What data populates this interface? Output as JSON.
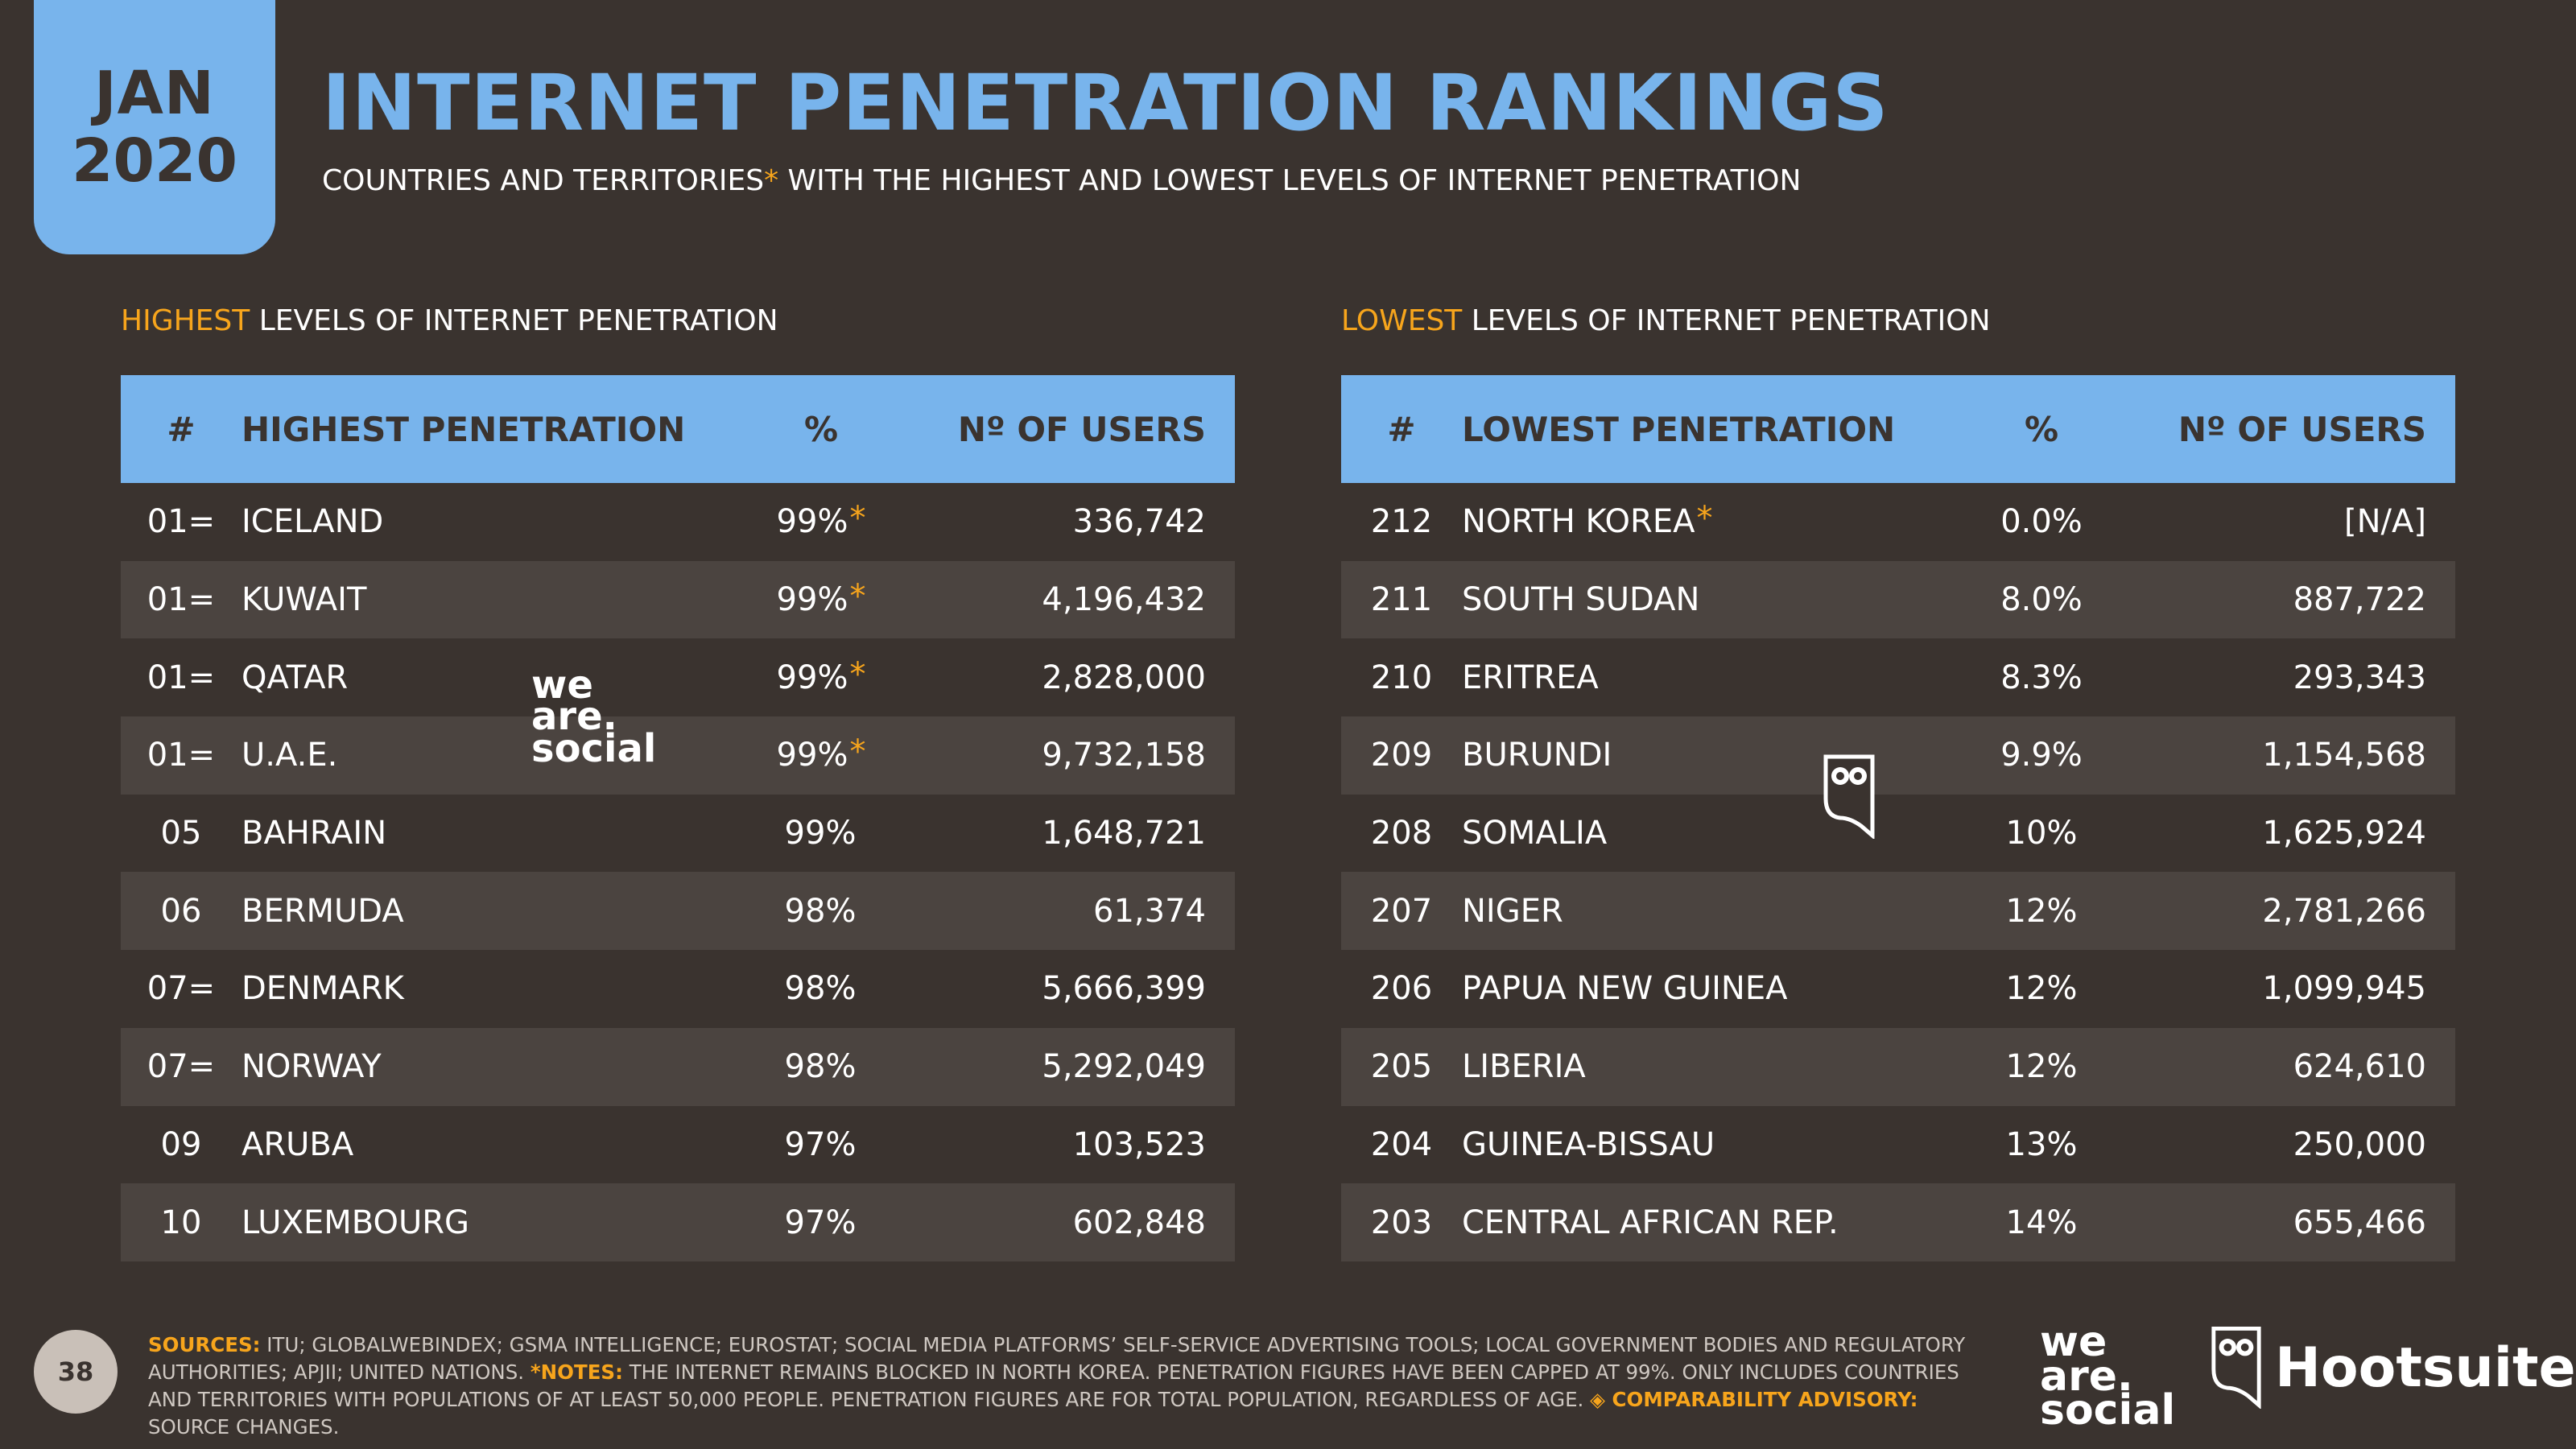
{
  "date_tab": {
    "month": "JAN",
    "year": "2020"
  },
  "header": {
    "title": "INTERNET PENETRATION RANKINGS",
    "subtitle_a": "COUNTRIES AND TERRITORIES",
    "subtitle_ast": "*",
    "subtitle_b": "WITH THE HIGHEST AND LOWEST LEVELS OF INTERNET PENETRATION"
  },
  "highest": {
    "section_accent": "HIGHEST",
    "section_rest": "LEVELS OF INTERNET PENETRATION",
    "columns": {
      "rank": "#",
      "name": "HIGHEST PENETRATION",
      "pct": "%",
      "users": "Nº OF USERS"
    },
    "rows": [
      {
        "rank": "01=",
        "name": "ICELAND",
        "pct": "99%",
        "ast": "*",
        "users": "336,742"
      },
      {
        "rank": "01=",
        "name": "KUWAIT",
        "pct": "99%",
        "ast": "*",
        "users": "4,196,432"
      },
      {
        "rank": "01=",
        "name": "QATAR",
        "pct": "99%",
        "ast": "*",
        "users": "2,828,000"
      },
      {
        "rank": "01=",
        "name": "U.A.E.",
        "pct": "99%",
        "ast": "*",
        "users": "9,732,158"
      },
      {
        "rank": "05",
        "name": "BAHRAIN",
        "pct": "99%",
        "ast": "",
        "users": "1,648,721"
      },
      {
        "rank": "06",
        "name": "BERMUDA",
        "pct": "98%",
        "ast": "",
        "users": "61,374"
      },
      {
        "rank": "07=",
        "name": "DENMARK",
        "pct": "98%",
        "ast": "",
        "users": "5,666,399"
      },
      {
        "rank": "07=",
        "name": "NORWAY",
        "pct": "98%",
        "ast": "",
        "users": "5,292,049"
      },
      {
        "rank": "09",
        "name": "ARUBA",
        "pct": "97%",
        "ast": "",
        "users": "103,523"
      },
      {
        "rank": "10",
        "name": "LUXEMBOURG",
        "pct": "97%",
        "ast": "",
        "users": "602,848"
      }
    ]
  },
  "lowest": {
    "section_accent": "LOWEST",
    "section_rest": "LEVELS OF INTERNET PENETRATION",
    "columns": {
      "rank": "#",
      "name": "LOWEST PENETRATION",
      "pct": "%",
      "users": "Nº OF USERS"
    },
    "rows": [
      {
        "rank": "212",
        "name": "NORTH KOREA",
        "name_ast": "*",
        "pct": "0.0%",
        "users": "[N/A]"
      },
      {
        "rank": "211",
        "name": "SOUTH SUDAN",
        "name_ast": "",
        "pct": "8.0%",
        "users": "887,722"
      },
      {
        "rank": "210",
        "name": "ERITREA",
        "name_ast": "",
        "pct": "8.3%",
        "users": "293,343"
      },
      {
        "rank": "209",
        "name": "BURUNDI",
        "name_ast": "",
        "pct": "9.9%",
        "users": "1,154,568"
      },
      {
        "rank": "208",
        "name": "SOMALIA",
        "name_ast": "",
        "pct": "10%",
        "users": "1,625,924"
      },
      {
        "rank": "207",
        "name": "NIGER",
        "name_ast": "",
        "pct": "12%",
        "users": "2,781,266"
      },
      {
        "rank": "206",
        "name": "PAPUA NEW GUINEA",
        "name_ast": "",
        "pct": "12%",
        "users": "1,099,945"
      },
      {
        "rank": "205",
        "name": "LIBERIA",
        "name_ast": "",
        "pct": "12%",
        "users": "624,610"
      },
      {
        "rank": "204",
        "name": "GUINEA-BISSAU",
        "name_ast": "",
        "pct": "13%",
        "users": "250,000"
      },
      {
        "rank": "203",
        "name": "CENTRAL AFRICAN REP.",
        "name_ast": "",
        "pct": "14%",
        "users": "655,466"
      }
    ]
  },
  "watermark": {
    "line1": "we",
    "line2": "are.",
    "line3": "social"
  },
  "footer": {
    "page_number": "38",
    "sources_label": "SOURCES:",
    "sources_text": "ITU; GLOBALWEBINDEX; GSMA INTELLIGENCE; EUROSTAT; SOCIAL MEDIA PLATFORMS’ SELF-SERVICE ADVERTISING TOOLS; LOCAL GOVERNMENT BODIES AND REGULATORY AUTHORITIES; APJII; UNITED NATIONS.",
    "notes_label": "*NOTES:",
    "notes_text": "THE INTERNET REMAINS BLOCKED IN NORTH KOREA. PENETRATION FIGURES HAVE BEEN CAPPED AT 99%. ONLY INCLUDES COUNTRIES AND TERRITORIES WITH POPULATIONS OF AT LEAST 50,000 PEOPLE. PENETRATION FIGURES ARE FOR TOTAL POPULATION, REGARDLESS OF AGE.",
    "advisory_label": "◈ COMPARABILITY ADVISORY:",
    "advisory_text": "SOURCE CHANGES.",
    "brand_hootsuite": "Hootsuite",
    "brand_reg": "®"
  },
  "colors": {
    "background": "#3a332f",
    "accent_blue": "#78b4ec",
    "accent_orange": "#f7a51c",
    "row_alt": "#4b4440"
  },
  "icons": {
    "owl": "hootsuite-owl-icon"
  }
}
